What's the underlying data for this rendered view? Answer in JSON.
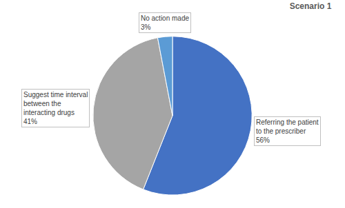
{
  "chart_data": {
    "type": "pie",
    "title": "Scenario 1",
    "categories": [
      "Referring the patient to the prescriber",
      "Suggest time interval between the interacting drugs",
      "No action made"
    ],
    "values": [
      56,
      41,
      3
    ],
    "value_labels": [
      "56%",
      "41%",
      "3%"
    ],
    "colors": [
      "#4472c4",
      "#a5a5a5",
      "#5b9bd5"
    ],
    "data_labels": true
  }
}
